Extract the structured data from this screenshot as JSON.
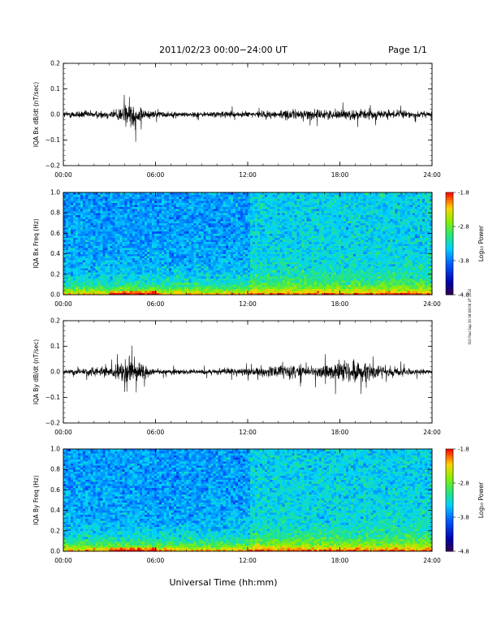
{
  "header": {
    "title": "2011/02/23  00:00−24:00 UT",
    "page": "Page 1/1"
  },
  "footer": {
    "xlabel": "Universal Time (hh:mm)"
  },
  "side_note": "IGO Rad Sap 30 08:08:06 UT 2010",
  "colors": {
    "line": "#000000",
    "axis": "#000000"
  },
  "chart_data": [
    {
      "type": "line",
      "ylabel": "IQA Bx dB/dt (nT/sec)",
      "xlim": [
        "00:00",
        "24:00"
      ],
      "ylim": [
        -0.2,
        0.2
      ],
      "xticks": [
        "00:00",
        "06:00",
        "12:00",
        "18:00",
        "24:00"
      ],
      "yticks": [
        "0.2",
        "0.1",
        "0.0",
        "−0.1",
        "−0.2"
      ],
      "envelope": {
        "hours": [
          0,
          1,
          2,
          3,
          3.5,
          4,
          4.5,
          5,
          5.5,
          6,
          7,
          8,
          9,
          10,
          11,
          12,
          13,
          14,
          15,
          16,
          17,
          18,
          19,
          20,
          21,
          22,
          23,
          24
        ],
        "amplitude": [
          0.022,
          0.028,
          0.026,
          0.03,
          0.045,
          0.07,
          0.09,
          0.06,
          0.03,
          0.024,
          0.02,
          0.018,
          0.02,
          0.022,
          0.024,
          0.022,
          0.026,
          0.03,
          0.035,
          0.035,
          0.032,
          0.034,
          0.036,
          0.035,
          0.03,
          0.028,
          0.024,
          0.022
        ]
      }
    },
    {
      "type": "heatmap",
      "ylabel": "IQA Bx Freq (Hz)",
      "xlim": [
        "00:00",
        "24:00"
      ],
      "ylim": [
        0.0,
        1.0
      ],
      "xticks": [
        "00:00",
        "06:00",
        "12:00",
        "18:00",
        "24:00"
      ],
      "yticks": [
        "1.0",
        "0.8",
        "0.6",
        "0.4",
        "0.2",
        "0.0"
      ],
      "colorbar": {
        "label": "Log₁₀ Power",
        "range": [
          -4.8,
          -1.8
        ],
        "ticks": [
          "-1.8",
          "-2.8",
          "-3.8",
          "-4.8"
        ]
      }
    },
    {
      "type": "line",
      "ylabel": "IQA By dB/dt (nT/sec)",
      "xlim": [
        "00:00",
        "24:00"
      ],
      "ylim": [
        -0.2,
        0.2
      ],
      "xticks": [
        "00:00",
        "06:00",
        "12:00",
        "18:00",
        "24:00"
      ],
      "yticks": [
        "0.2",
        "0.1",
        "0.0",
        "−0.1",
        "−0.2"
      ],
      "envelope": {
        "hours": [
          0,
          1,
          2,
          3,
          3.5,
          4,
          4.5,
          5,
          5.5,
          6,
          7,
          8,
          9,
          10,
          11,
          12,
          13,
          14,
          15,
          16,
          17,
          18,
          19,
          20,
          21,
          22,
          23,
          24
        ],
        "amplitude": [
          0.015,
          0.02,
          0.03,
          0.035,
          0.05,
          0.08,
          0.1,
          0.06,
          0.035,
          0.025,
          0.018,
          0.016,
          0.018,
          0.02,
          0.024,
          0.026,
          0.035,
          0.042,
          0.045,
          0.04,
          0.05,
          0.07,
          0.08,
          0.06,
          0.04,
          0.03,
          0.02,
          0.015
        ]
      }
    },
    {
      "type": "heatmap",
      "ylabel": "IQA By Freq (Hz)",
      "xlim": [
        "00:00",
        "24:00"
      ],
      "ylim": [
        0.0,
        1.0
      ],
      "xticks": [
        "00:00",
        "06:00",
        "12:00",
        "18:00",
        "24:00"
      ],
      "yticks": [
        "1.0",
        "0.8",
        "0.6",
        "0.4",
        "0.2",
        "0.0"
      ],
      "colorbar": {
        "label": "Log₁₀ Power",
        "range": [
          -4.8,
          -1.8
        ],
        "ticks": [
          "-1.8",
          "-2.8",
          "-3.8",
          "-4.8"
        ]
      }
    }
  ]
}
